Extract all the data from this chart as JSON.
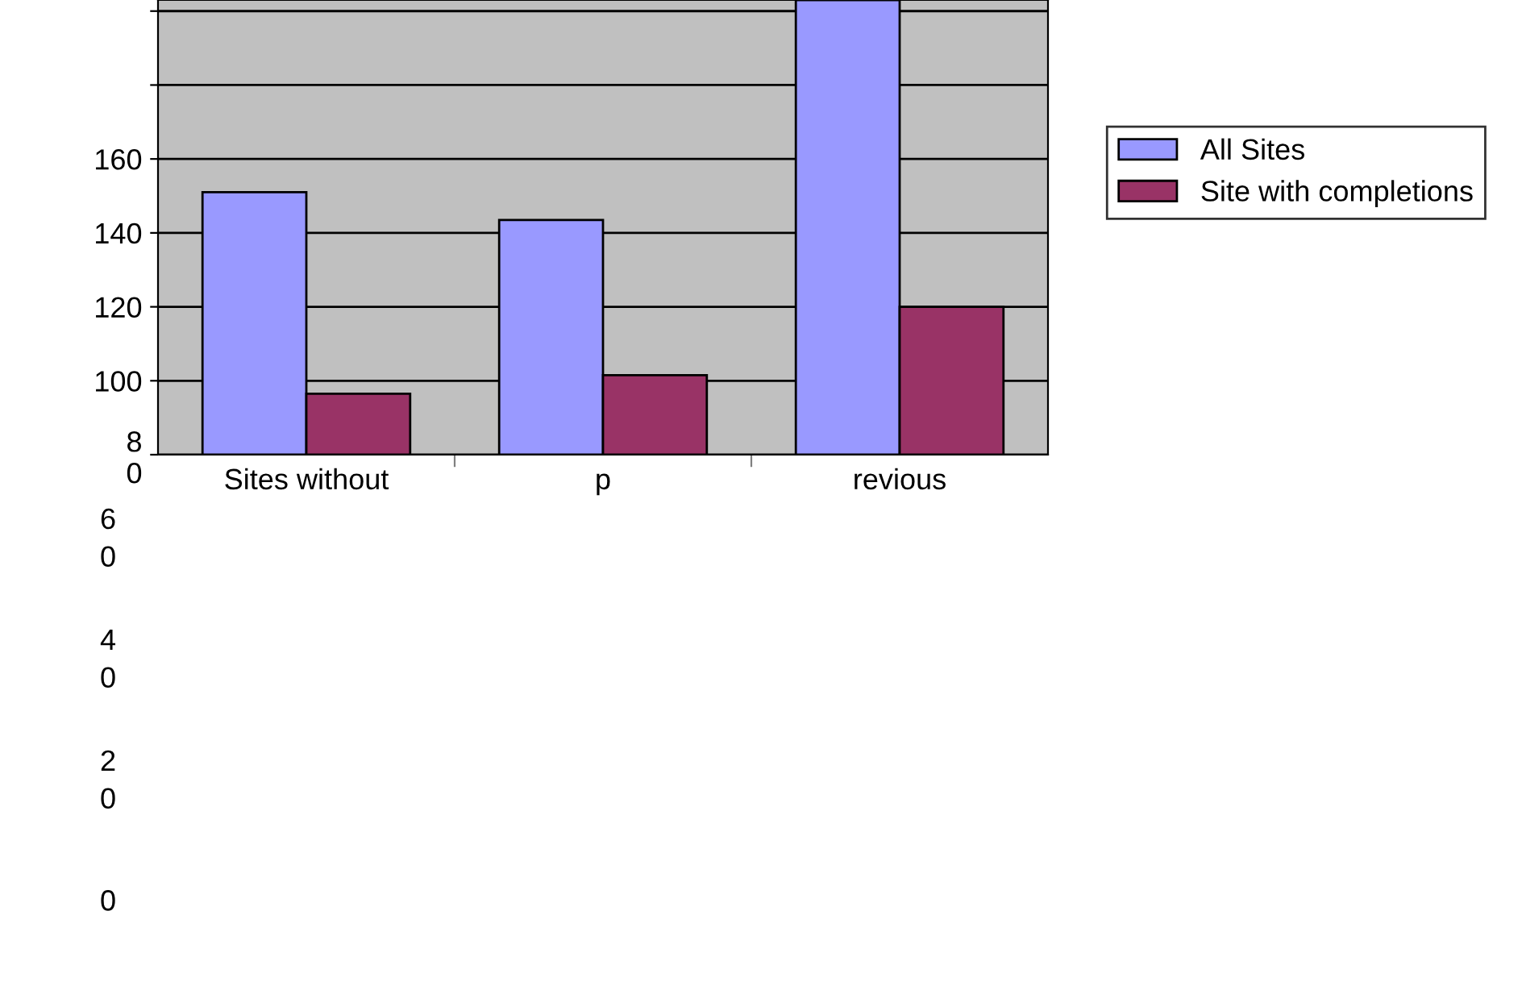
{
  "chart_data": {
    "type": "bar",
    "categories": [
      "Sites without",
      "p",
      "revious"
    ],
    "series": [
      {
        "name": "All Sites",
        "color": "#9999ff",
        "values": [
          151,
          143.5,
          203
        ]
      },
      {
        "name": "Site with completions",
        "color": "#993366",
        "values": [
          96.5,
          101.5,
          120
        ]
      }
    ],
    "ylim": [
      80,
      203
    ],
    "yticks": [
      {
        "value": 80,
        "label": "8\n0"
      },
      100,
      120,
      140,
      160,
      {
        "value": 180,
        "label": null
      },
      {
        "value": 200,
        "label": null
      }
    ],
    "grid": "y",
    "legend": "right",
    "annotations": [
      "6\n0",
      "4\n0",
      "2\n0",
      "0"
    ]
  }
}
